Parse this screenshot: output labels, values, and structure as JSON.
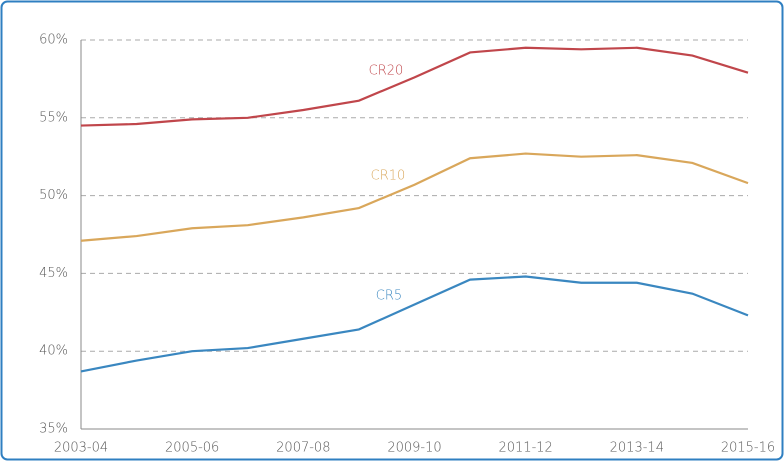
{
  "chart_data": {
    "type": "line",
    "categories": [
      "2003-04",
      null,
      "2005-06",
      null,
      "2007-08",
      null,
      "2009-10",
      null,
      "2011-12",
      null,
      "2013-14",
      null,
      "2015-16"
    ],
    "series": [
      {
        "name": "CR20",
        "color": "#c0464b",
        "values": [
          54.5,
          54.6,
          54.9,
          55.0,
          55.5,
          56.1,
          57.6,
          59.2,
          59.5,
          59.4,
          59.5,
          59.0,
          57.9
        ]
      },
      {
        "name": "CR10",
        "color": "#d9a75b",
        "values": [
          47.1,
          47.4,
          47.9,
          48.1,
          48.6,
          49.2,
          50.7,
          52.4,
          52.7,
          52.5,
          52.6,
          52.1,
          50.8
        ]
      },
      {
        "name": "CR5",
        "color": "#3a87c0",
        "values": [
          38.7,
          39.4,
          40.0,
          40.2,
          40.8,
          41.4,
          43.0,
          44.6,
          44.8,
          44.4,
          44.4,
          43.7,
          42.3
        ]
      }
    ],
    "ylim": [
      35,
      60
    ],
    "yticks": [
      {
        "value": 35,
        "label": "35%"
      },
      {
        "value": 40,
        "label": "40%"
      },
      {
        "value": 45,
        "label": "45%"
      },
      {
        "value": 50,
        "label": "50%"
      },
      {
        "value": 55,
        "label": "55%"
      },
      {
        "value": 60,
        "label": "60%"
      }
    ],
    "grid": true
  }
}
